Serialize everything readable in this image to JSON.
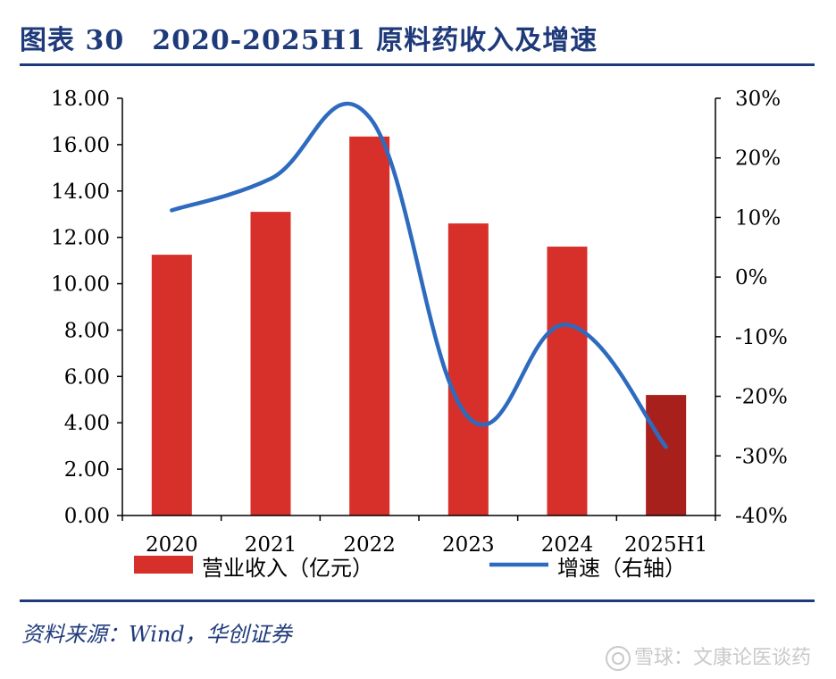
{
  "title": "图表 30　2020-2025H1 原料药收入及增速",
  "source": "资料来源：Wind，华创证券",
  "watermark": "雪球：文康论医谈药",
  "colors": {
    "bar": "#d7302a",
    "bar_highlight": "#a8201c",
    "line": "#2e6bbf",
    "title": "#1f3a7a"
  },
  "chart_data": {
    "type": "bar+line",
    "categories": [
      "2020",
      "2021",
      "2022",
      "2023",
      "2024",
      "2025H1"
    ],
    "series": [
      {
        "name": "营业收入（亿元）",
        "type": "bar",
        "axis": "left",
        "values": [
          11.25,
          13.1,
          16.35,
          12.6,
          11.6,
          5.2
        ]
      },
      {
        "name": "增速（右轴）",
        "type": "line",
        "axis": "right",
        "values": [
          11.2,
          16.5,
          26.8,
          -23.5,
          -8.0,
          -28.5
        ]
      }
    ],
    "left_axis": {
      "min": 0,
      "max": 18,
      "step": 2,
      "tick_labels": [
        "0.00",
        "2.00",
        "4.00",
        "6.00",
        "8.00",
        "10.00",
        "12.00",
        "14.00",
        "16.00",
        "18.00"
      ]
    },
    "right_axis": {
      "min": -40,
      "max": 30,
      "step": 10,
      "tick_labels": [
        "-40%",
        "-30%",
        "-20%",
        "-10%",
        "0%",
        "10%",
        "20%",
        "30%"
      ]
    },
    "legend": [
      "营业收入（亿元）",
      "增速（右轴）"
    ],
    "legend_position": "bottom"
  }
}
